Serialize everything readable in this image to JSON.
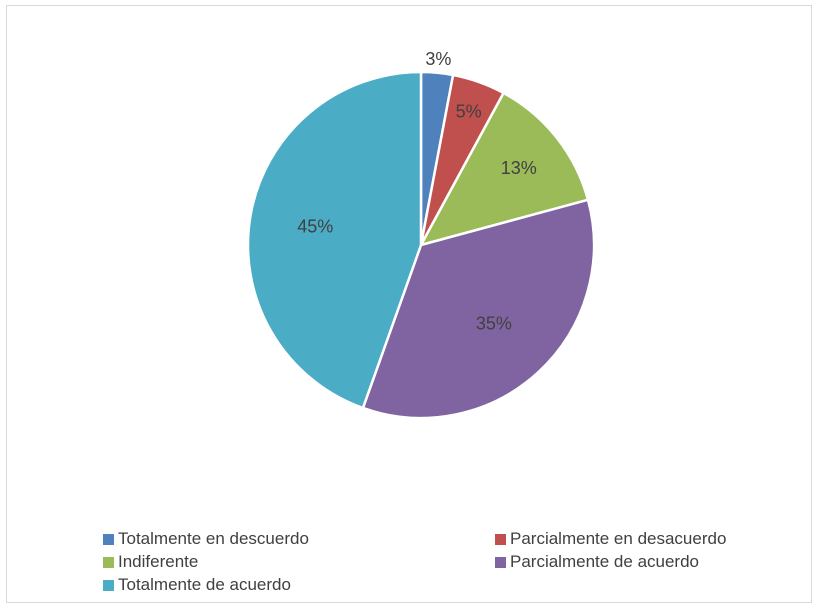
{
  "chart_data": {
    "type": "pie",
    "title": "",
    "legend_position": "bottom",
    "slices": [
      {
        "label": "Totalmente en descuerdo",
        "value": 3,
        "display": "3%",
        "color": "#4f81bd"
      },
      {
        "label": "Parcialmente en desacuerdo",
        "value": 5,
        "display": "5%",
        "color": "#c0504d"
      },
      {
        "label": "Indiferente",
        "value": 13,
        "display": "13%",
        "color": "#9bbb59"
      },
      {
        "label": "Parcialmente de acuerdo",
        "value": 35,
        "display": "35%",
        "color": "#8064a2"
      },
      {
        "label": "Totalmente de acuerdo",
        "value": 45,
        "display": "45%",
        "color": "#4bacc6"
      }
    ]
  }
}
